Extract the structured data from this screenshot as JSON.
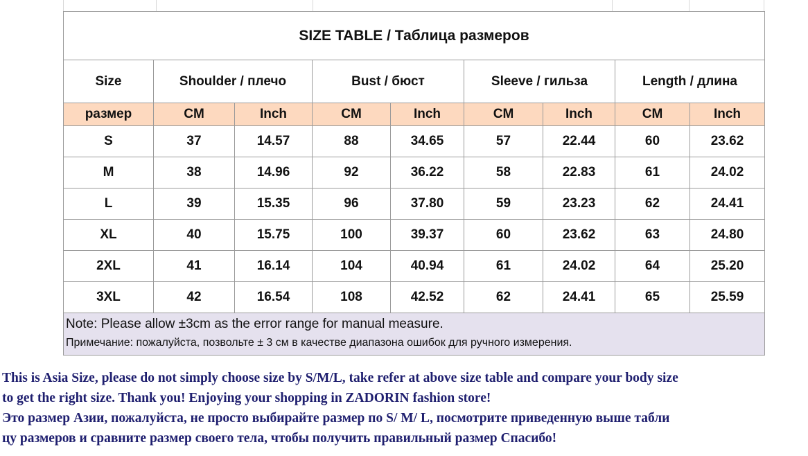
{
  "title": "SIZE TABLE  / Таблица размеров",
  "headers": [
    "Size",
    "Shoulder / плечо",
    "Bust / бюст",
    "Sleeve / гильза",
    "Length / длина"
  ],
  "units": [
    "размер",
    "CM",
    "Inch",
    "CM",
    "Inch",
    "CM",
    "Inch",
    "CM",
    "Inch"
  ],
  "rows": [
    [
      "S",
      "37",
      "14.57",
      "88",
      "34.65",
      "57",
      "22.44",
      "60",
      "23.62"
    ],
    [
      "M",
      "38",
      "14.96",
      "92",
      "36.22",
      "58",
      "22.83",
      "61",
      "24.02"
    ],
    [
      "L",
      "39",
      "15.35",
      "96",
      "37.80",
      "59",
      "23.23",
      "62",
      "24.41"
    ],
    [
      "XL",
      "40",
      "15.75",
      "100",
      "39.37",
      "60",
      "23.62",
      "63",
      "24.80"
    ],
    [
      "2XL",
      "41",
      "16.14",
      "104",
      "40.94",
      "61",
      "24.02",
      "64",
      "25.20"
    ],
    [
      "3XL",
      "42",
      "16.54",
      "108",
      "42.52",
      "62",
      "24.41",
      "65",
      "25.59"
    ]
  ],
  "note": {
    "line1": "Note: Please allow ±3cm as the error range for manual measure.",
    "line2": "Примечание: пожалуйста, позвольте ± 3 см в качестве диапазона ошибок для ручного измерения."
  },
  "bottom_text": [
    "This is Asia Size, please do not simply choose size by S/M/L, take refer at above size table and compare your body size",
    "to get the right size. Thank you!  Enjoying your shopping in ZADORIN fashion store!",
    "Это размер Азии, пожалуйста, не просто выбирайте размер по S/ M/ L, посмотрите приведенную выше табли",
    "цу размеров и сравните размер своего тела, чтобы получить правильный размер Спасибо!"
  ],
  "colors": {
    "unit_row_bg": "#fdd9bf",
    "note_bg": "#e5e1ee",
    "bottom_text": "#1f1f6f",
    "border": "#9a9a9a"
  }
}
